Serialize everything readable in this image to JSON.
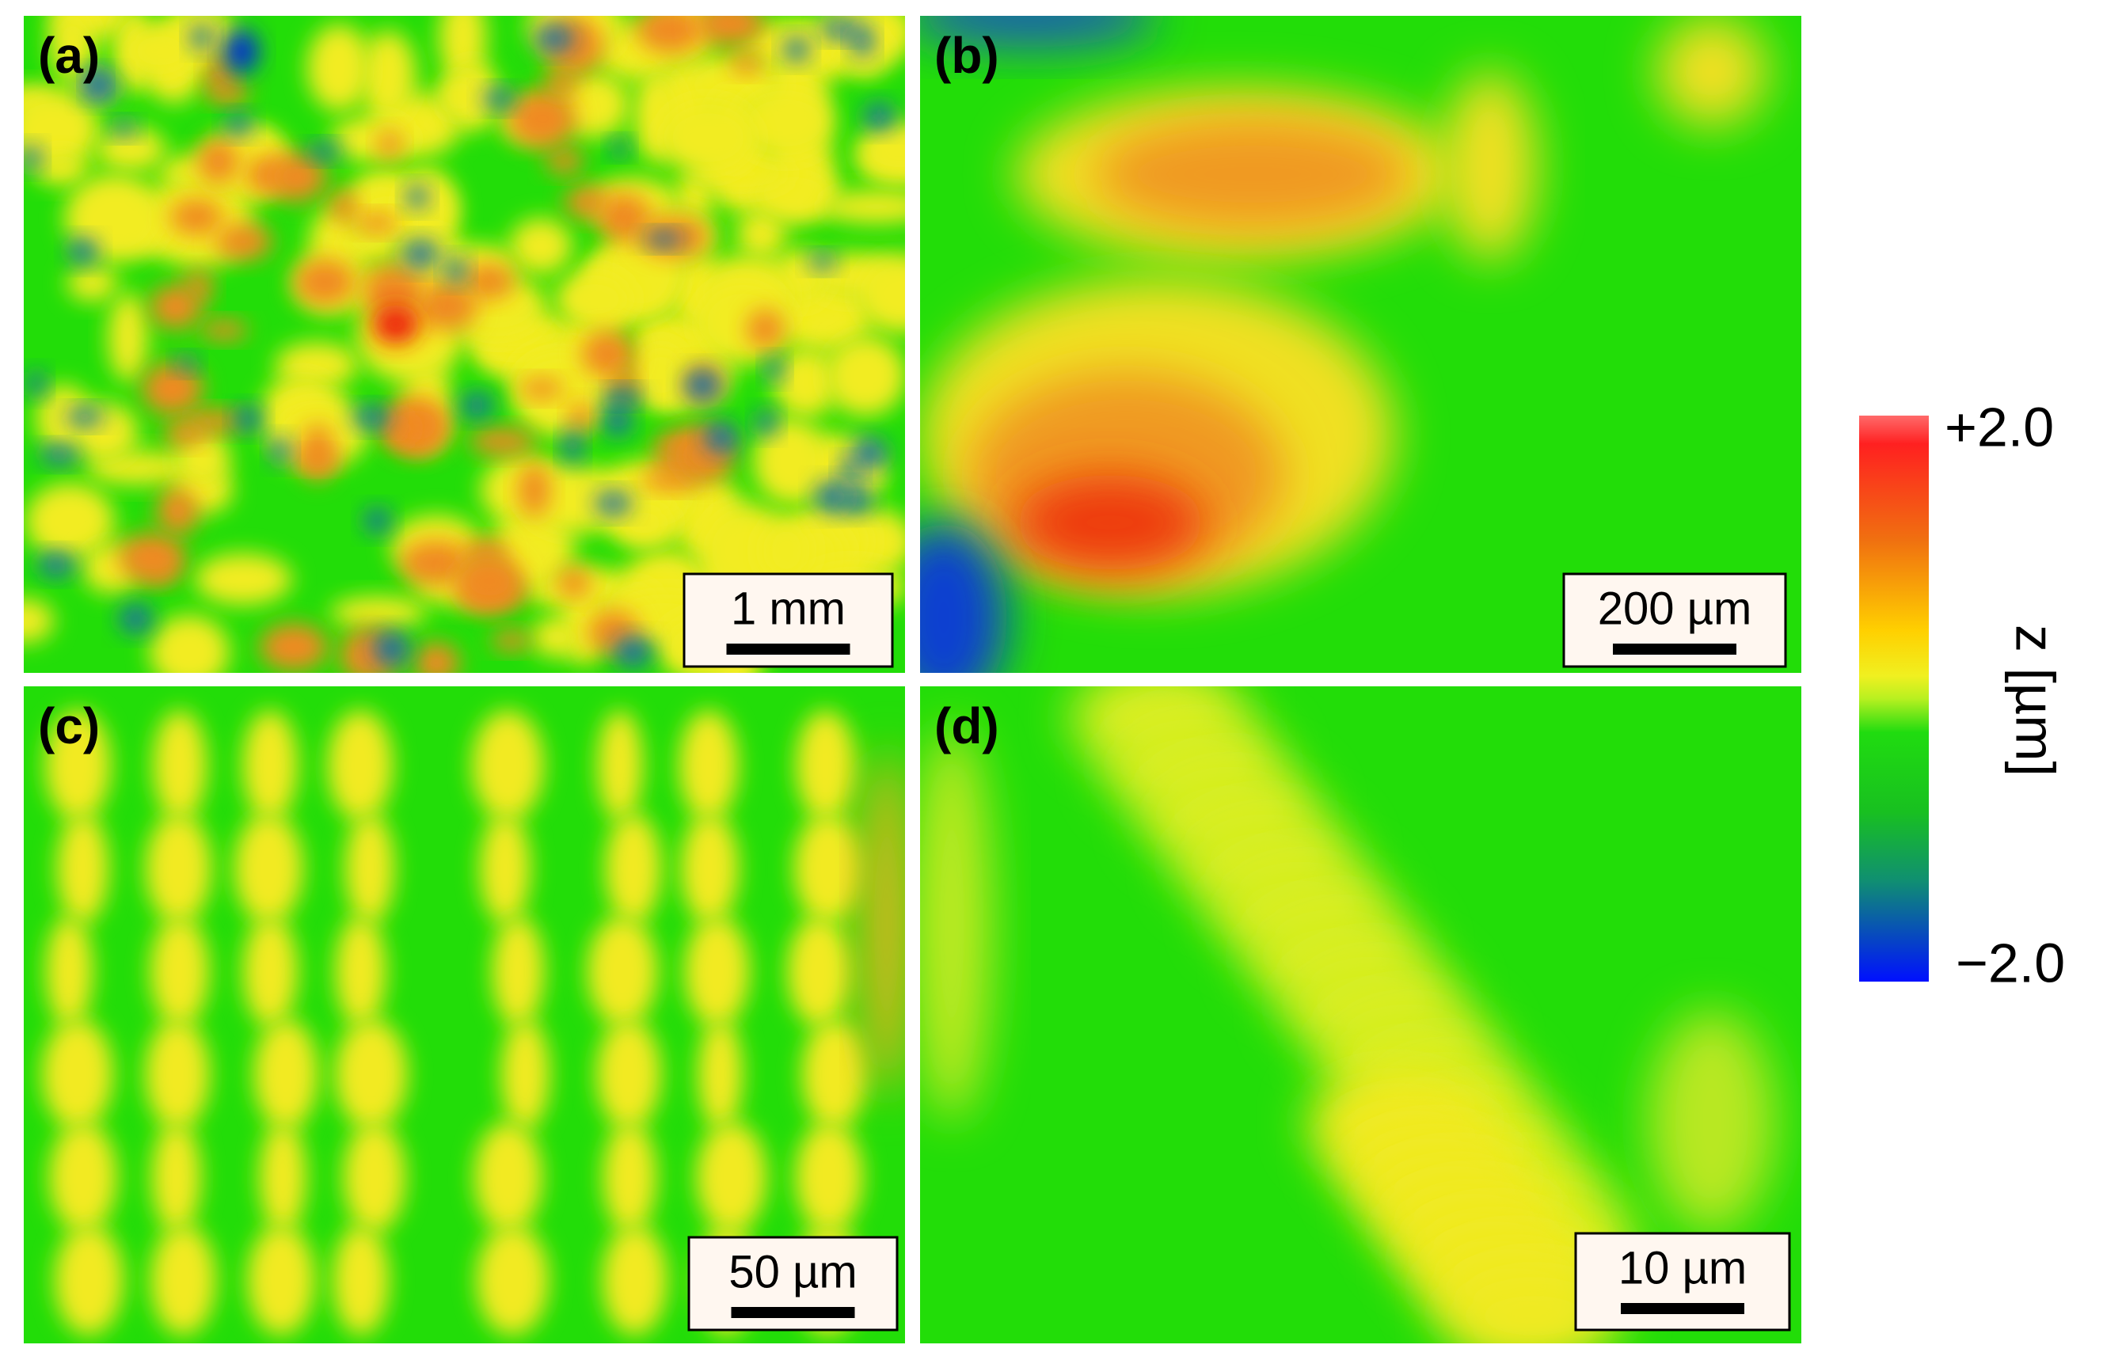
{
  "panels": [
    {
      "label": "(a)",
      "scale_bar": "1 mm"
    },
    {
      "label": "(b)",
      "scale_bar": "200 µm"
    },
    {
      "label": "(c)",
      "scale_bar": "50 µm"
    },
    {
      "label": "(d)",
      "scale_bar": "10 µm"
    }
  ],
  "colorbar": {
    "label": "z [µm]",
    "max_label": "+2.0",
    "min_label": "−2.0"
  }
}
